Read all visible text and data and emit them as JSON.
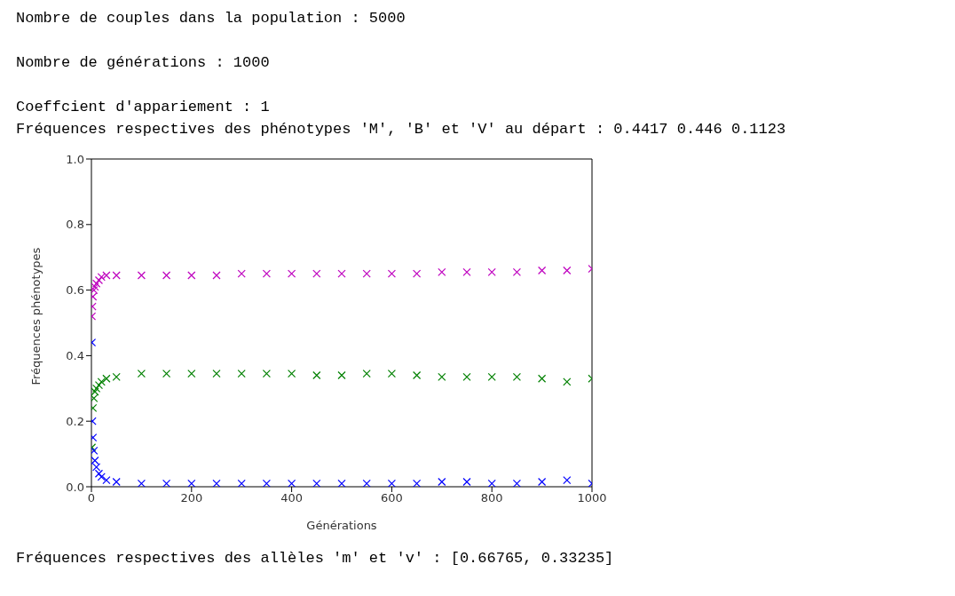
{
  "chart_data": {
    "type": "scatter",
    "annotations": [
      "Nombre de couples dans la population : 5000",
      "Nombre de générations : 1000",
      "Coeffcient d'appariement : 1",
      "Fréquences respectives des phénotypes 'M', 'B' et 'V' au départ : 0.4417 0.446 0.1123",
      "Fréquences respectives des allèles 'm' et 'v' : [0.66765, 0.33235]"
    ],
    "xlabel": "Générations",
    "ylabel": "Fréquences phénotypes",
    "x": [
      1,
      2,
      3,
      5,
      7,
      10,
      15,
      20,
      30,
      50,
      100,
      150,
      200,
      250,
      300,
      350,
      400,
      450,
      500,
      550,
      600,
      650,
      700,
      750,
      800,
      850,
      900,
      950,
      1000
    ],
    "series": [
      {
        "color": "#bf00bf",
        "values": [
          0.52,
          0.55,
          0.58,
          0.6,
          0.61,
          0.62,
          0.63,
          0.64,
          0.645,
          0.645,
          0.645,
          0.645,
          0.645,
          0.645,
          0.65,
          0.65,
          0.65,
          0.65,
          0.65,
          0.65,
          0.65,
          0.65,
          0.655,
          0.655,
          0.655,
          0.655,
          0.66,
          0.66,
          0.665
        ]
      },
      {
        "color": "#008000",
        "values": [
          0.12,
          null,
          0.24,
          0.27,
          0.29,
          0.3,
          0.31,
          0.32,
          0.33,
          0.335,
          0.345,
          0.345,
          0.345,
          0.345,
          0.345,
          0.345,
          0.345,
          0.34,
          0.34,
          0.345,
          0.345,
          0.34,
          0.335,
          0.335,
          0.335,
          0.335,
          0.33,
          0.32,
          0.33
        ]
      },
      {
        "color": "#0000ff",
        "values": [
          0.44,
          0.2,
          0.15,
          0.11,
          0.08,
          0.06,
          0.04,
          0.03,
          0.02,
          0.015,
          0.01,
          0.01,
          0.01,
          0.01,
          0.01,
          0.01,
          0.01,
          0.01,
          0.01,
          0.01,
          0.01,
          0.01,
          0.015,
          0.015,
          0.01,
          0.01,
          0.015,
          0.02,
          0.01
        ]
      }
    ],
    "xlim": [
      0,
      1000
    ],
    "xticks": [
      0,
      200,
      400,
      600,
      800,
      1000
    ],
    "ylim": [
      0,
      1
    ],
    "yticks": [
      {
        "value": 0,
        "label": "0.0"
      },
      {
        "value": 0.2,
        "label": "0.2"
      },
      {
        "value": 0.4,
        "label": "0.4"
      },
      {
        "value": 0.6,
        "label": "0.6"
      },
      {
        "value": 0.8,
        "label": "0.8"
      },
      {
        "value": 1,
        "label": "1.0"
      }
    ],
    "marker": "cross",
    "grid": false,
    "legend": false
  }
}
